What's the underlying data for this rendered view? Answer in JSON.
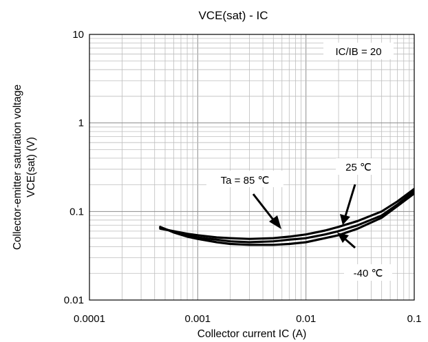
{
  "chart_data": {
    "type": "line",
    "title": "VCE(sat) - IC",
    "xlabel": "Collector current IC (A)",
    "ylabel": [
      "Collector-emitter saturation voltage",
      "VCE(sat) (V)"
    ],
    "x_scale": "log",
    "y_scale": "log",
    "xlim": [
      0.0001,
      0.1
    ],
    "ylim": [
      0.01,
      10
    ],
    "x_ticks": [
      "0.0001",
      "0.001",
      "0.01",
      "0.1"
    ],
    "y_ticks": [
      "0.01",
      "0.1",
      "1",
      "10"
    ],
    "grid": true,
    "annotations": {
      "condition": "IC/IB = 20",
      "t85": "Ta = 85 ℃",
      "t25": "25 ℃",
      "tm40": "-40 ℃"
    },
    "series": [
      {
        "x": [
          0.00045,
          0.0006,
          0.0008,
          0.001,
          0.0015,
          0.002,
          0.003,
          0.005,
          0.007,
          0.01,
          0.015,
          0.02,
          0.03,
          0.05,
          0.07,
          0.1
        ],
        "y": [
          0.067,
          0.058,
          0.052,
          0.049,
          0.045,
          0.043,
          0.042,
          0.042,
          0.043,
          0.045,
          0.05,
          0.054,
          0.064,
          0.085,
          0.115,
          0.16
        ]
      },
      {
        "x": [
          0.00045,
          0.0006,
          0.0008,
          0.001,
          0.0015,
          0.002,
          0.003,
          0.005,
          0.007,
          0.01,
          0.015,
          0.02,
          0.03,
          0.05,
          0.07,
          0.1
        ],
        "y": [
          0.066,
          0.059,
          0.054,
          0.051,
          0.048,
          0.046,
          0.045,
          0.046,
          0.048,
          0.05,
          0.055,
          0.06,
          0.07,
          0.09,
          0.12,
          0.17
        ]
      },
      {
        "x": [
          0.00045,
          0.0006,
          0.0008,
          0.001,
          0.0015,
          0.002,
          0.003,
          0.005,
          0.007,
          0.01,
          0.015,
          0.02,
          0.03,
          0.05,
          0.07,
          0.1
        ],
        "y": [
          0.064,
          0.06,
          0.056,
          0.054,
          0.051,
          0.05,
          0.049,
          0.05,
          0.052,
          0.055,
          0.061,
          0.067,
          0.078,
          0.1,
          0.13,
          0.18
        ]
      }
    ]
  }
}
